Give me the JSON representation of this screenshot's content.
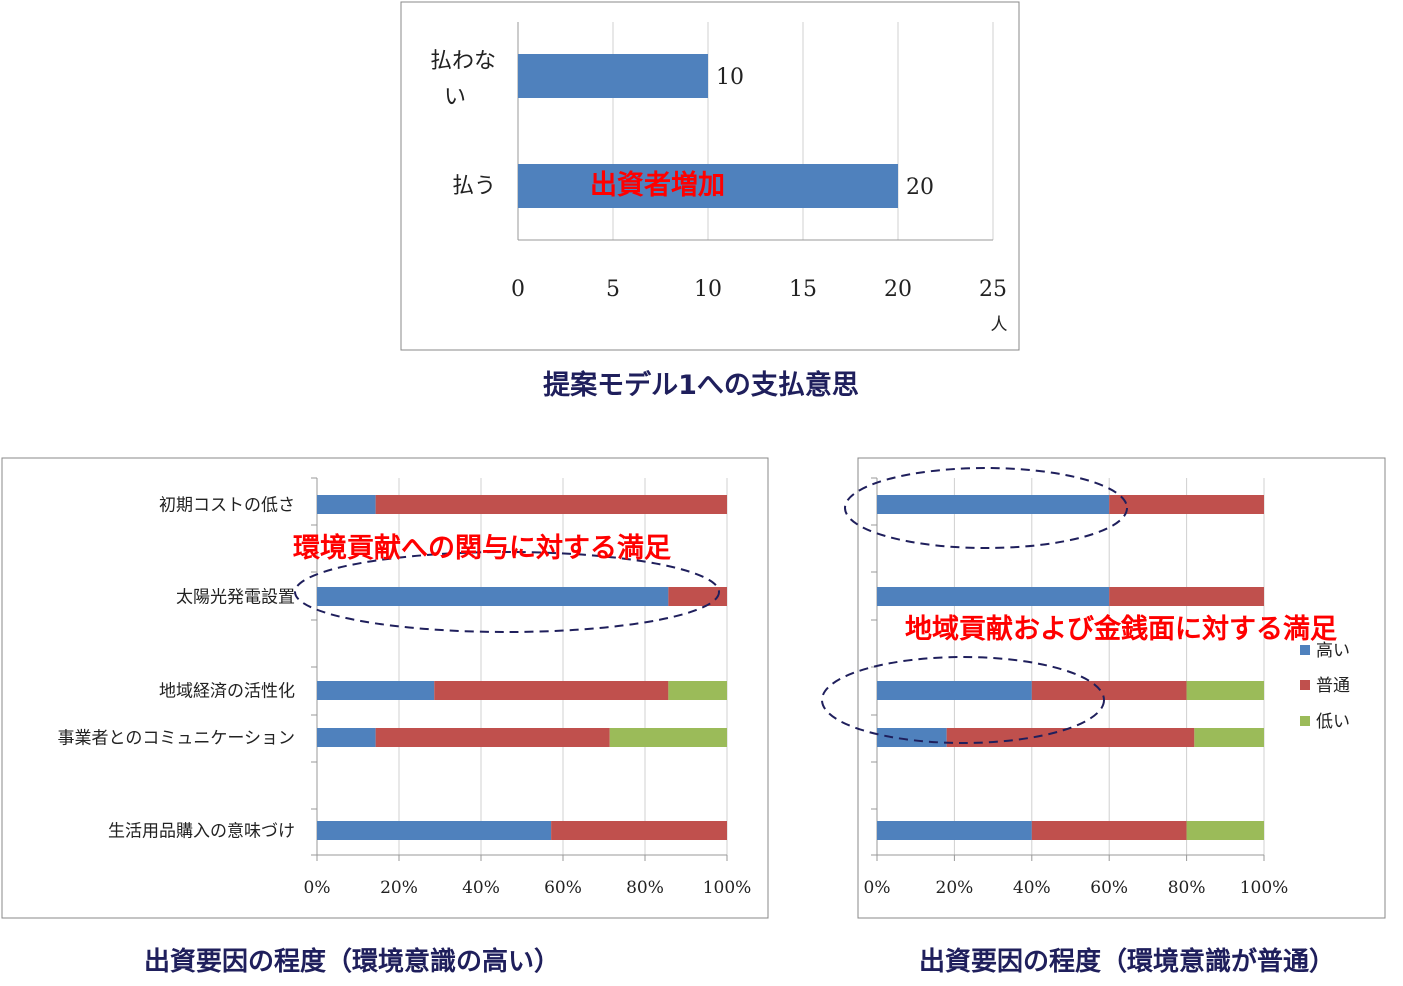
{
  "chart_data": [
    {
      "type": "bar",
      "orientation": "horizontal",
      "categories": [
        "払わない",
        "払う"
      ],
      "values": [
        10,
        20
      ],
      "data_labels": [
        "10",
        "20"
      ],
      "xticks": [
        "0",
        "5",
        "10",
        "15",
        "20",
        "25"
      ],
      "xlim": [
        0,
        25
      ],
      "unit": "人",
      "grid": "vertical",
      "annotation": "出資者増加",
      "caption": "提案モデル1への支払意思",
      "color": "#4f81bd"
    },
    {
      "type": "bar",
      "orientation": "horizontal",
      "stacked": "percent",
      "categories": [
        "初期コストの低さ",
        "太陽光発電設置",
        "地域経済の活性化",
        "事業者とのコミュニケーション",
        "生活用品購入の意味づけ"
      ],
      "series": [
        {
          "name": "高い",
          "color": "#4f81bd",
          "values": [
            14.3,
            85.7,
            28.6,
            14.3,
            57.1
          ]
        },
        {
          "name": "普通",
          "color": "#c0504d",
          "values": [
            85.7,
            14.3,
            57.1,
            57.1,
            42.9
          ]
        },
        {
          "name": "低い",
          "color": "#9bbb59",
          "values": [
            0,
            0,
            14.3,
            28.6,
            0
          ]
        }
      ],
      "xticks": [
        "0%",
        "20%",
        "40%",
        "60%",
        "80%",
        "100%"
      ],
      "xlim": [
        0,
        100
      ],
      "grid": "vertical",
      "annotation": "環境貢献への関与に対する満足",
      "caption": "出資要因の程度（環境意識の高い）"
    },
    {
      "type": "bar",
      "orientation": "horizontal",
      "stacked": "percent",
      "series": [
        {
          "name": "高い",
          "color": "#4f81bd",
          "values": [
            60,
            60,
            40,
            18,
            40
          ]
        },
        {
          "name": "普通",
          "color": "#c0504d",
          "values": [
            40,
            40,
            40,
            64,
            40
          ]
        },
        {
          "name": "低い",
          "color": "#9bbb59",
          "values": [
            0,
            0,
            20,
            18,
            20
          ]
        }
      ],
      "xticks": [
        "0%",
        "20%",
        "40%",
        "60%",
        "80%",
        "100%"
      ],
      "xlim": [
        0,
        100
      ],
      "grid": "vertical",
      "legend": {
        "position": "right",
        "entries": [
          "高い",
          "普通",
          "低い"
        ]
      },
      "annotation": "地域貢献および金銭面に対する満足",
      "caption": "出資要因の程度（環境意識が普通）"
    }
  ]
}
